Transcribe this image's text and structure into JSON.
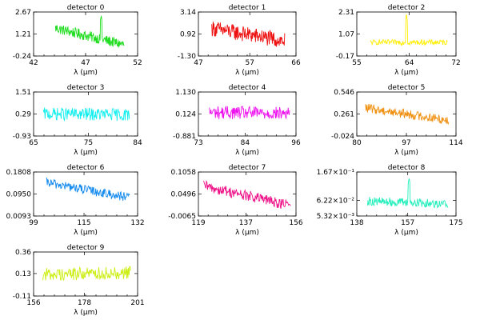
{
  "figure": {
    "xlabel": "λ (μm)"
  },
  "chart_data": [
    {
      "type": "line",
      "title": "detector 0",
      "color": "#22dd22",
      "xticks": [
        "42",
        "47",
        "52"
      ],
      "xlim": [
        42,
        52
      ],
      "yticks": [
        "-0.24",
        "1.21",
        "2.67"
      ],
      "ylim": [
        -0.24,
        2.67
      ],
      "x_range": [
        44.1,
        50.7
      ],
      "y_level": 0.95,
      "noise": 0.35,
      "trend": [
        1.6,
        0.5
      ],
      "spikes": [
        {
          "x": 48.5,
          "y": 2.45
        }
      ]
    },
    {
      "type": "line",
      "title": "detector 1",
      "color": "#ee1111",
      "xticks": [
        "47",
        "57",
        "66"
      ],
      "xlim": [
        47,
        66
      ],
      "yticks": [
        "-1.30",
        "0.92",
        "3.14"
      ],
      "ylim": [
        -1.3,
        3.14
      ],
      "x_range": [
        49.6,
        63.8
      ],
      "y_level": 0.9,
      "noise": 0.8,
      "trend": [
        1.5,
        0.2
      ],
      "spikes": []
    },
    {
      "type": "line",
      "title": "detector 2",
      "color": "#ffee00",
      "xticks": [
        "55",
        "64",
        "72"
      ],
      "xlim": [
        55,
        72
      ],
      "yticks": [
        "-0.17",
        "1.07",
        "2.31"
      ],
      "ylim": [
        -0.17,
        2.31
      ],
      "x_range": [
        57.3,
        70.5
      ],
      "y_level": 0.6,
      "noise": 0.15,
      "trend": [
        0.6,
        0.6
      ],
      "spikes": [
        {
          "x": 63.5,
          "y": 2.2
        }
      ]
    },
    {
      "type": "line",
      "title": "detector 3",
      "color": "#11eeee",
      "xticks": [
        "65",
        "75",
        "84"
      ],
      "xlim": [
        65,
        84
      ],
      "yticks": [
        "-0.93",
        "0.29",
        "1.51"
      ],
      "ylim": [
        -0.93,
        1.51
      ],
      "x_range": [
        66.8,
        82.5
      ],
      "y_level": 0.25,
      "noise": 0.35,
      "trend": [
        0.3,
        0.25
      ],
      "spikes": []
    },
    {
      "type": "line",
      "title": "detector 4",
      "color": "#ee11ee",
      "xticks": [
        "73",
        "84",
        "96"
      ],
      "xlim": [
        73,
        96
      ],
      "yticks": [
        "-0.881",
        "0.124",
        "1.130"
      ],
      "ylim": [
        -0.881,
        1.13
      ],
      "x_range": [
        75.6,
        94.5
      ],
      "y_level": 0.15,
      "noise": 0.3,
      "trend": [
        0.2,
        0.15
      ],
      "spikes": []
    },
    {
      "type": "line",
      "title": "detector 5",
      "color": "#f09010",
      "xticks": [
        "80",
        "97",
        "114"
      ],
      "xlim": [
        80,
        114
      ],
      "yticks": [
        "-0.024",
        "0.261",
        "0.546"
      ],
      "ylim": [
        -0.024,
        0.546
      ],
      "x_range": [
        83.0,
        111.5
      ],
      "y_level": 0.27,
      "noise": 0.06,
      "trend": [
        0.34,
        0.18
      ],
      "spikes": []
    },
    {
      "type": "line",
      "title": "detector 6",
      "color": "#1188ee",
      "xticks": [
        "99",
        "115",
        "132"
      ],
      "xlim": [
        99,
        132
      ],
      "yticks": [
        "0.0093",
        "0.0950",
        "0.1808"
      ],
      "ylim": [
        0.0093,
        0.1808
      ],
      "x_range": [
        103.0,
        129.5
      ],
      "y_level": 0.11,
      "noise": 0.018,
      "trend": [
        0.14,
        0.08
      ],
      "spikes": []
    },
    {
      "type": "line",
      "title": "detector 7",
      "color": "#ee1188",
      "xticks": [
        "119",
        "137",
        "156"
      ],
      "xlim": [
        119,
        156
      ],
      "yticks": [
        "-0.0065",
        "0.0496",
        "0.1058"
      ],
      "ylim": [
        -0.0065,
        0.1058
      ],
      "x_range": [
        121.0,
        154.0
      ],
      "y_level": 0.05,
      "noise": 0.014,
      "trend": [
        0.07,
        0.02
      ],
      "spikes": []
    },
    {
      "type": "line",
      "title": "detector 8",
      "color": "#22eebb",
      "xticks": [
        "138",
        "157",
        "175"
      ],
      "xlim": [
        138,
        175
      ],
      "yticks": [
        "5.32×10⁻³",
        "6.22×10⁻²",
        "1.67×10⁻¹"
      ],
      "ylim": [
        0.00532,
        0.167
      ],
      "x_range": [
        142.0,
        172.0
      ],
      "y_level": 0.055,
      "noise": 0.016,
      "trend": [
        0.06,
        0.05
      ],
      "spikes": [
        {
          "x": 157.5,
          "y": 0.145
        }
      ]
    },
    {
      "type": "line",
      "title": "detector 9",
      "color": "#ccee11",
      "xticks": [
        "156",
        "178",
        "201"
      ],
      "xlim": [
        156,
        201
      ],
      "yticks": [
        "-0.11",
        "0.13",
        "0.36"
      ],
      "ylim": [
        -0.11,
        0.36
      ],
      "x_range": [
        160.0,
        198.0
      ],
      "y_level": 0.13,
      "noise": 0.07,
      "trend": [
        0.12,
        0.14
      ],
      "spikes": []
    }
  ]
}
